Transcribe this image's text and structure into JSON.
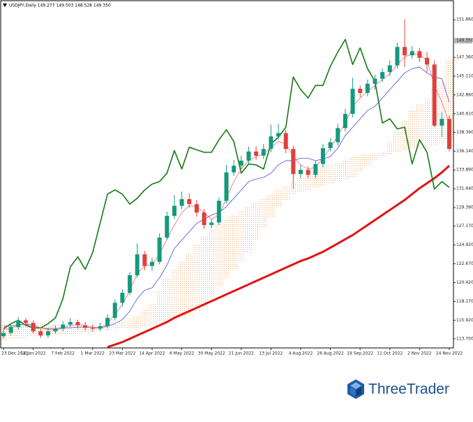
{
  "chart_data": {
    "type": "candlestick",
    "title": "USDJPY,Daily  149.277 149.503 148.528 149.350",
    "categories": [
      "23 Dec 2021",
      null,
      null,
      null,
      "14 Jan 2022",
      null,
      null,
      null,
      "7 Feb 2022",
      null,
      null,
      null,
      "1 Mar 2022",
      null,
      null,
      null,
      "23 Mar 2022",
      null,
      null,
      null,
      "14 Apr 2022",
      null,
      null,
      null,
      "6 May 2022",
      null,
      null,
      null,
      "30 May 2022",
      null,
      null,
      null,
      "21 Jun 2022",
      null,
      null,
      null,
      "13 Jul 2022",
      null,
      null,
      null,
      "4 Aug 2022",
      null,
      null,
      null,
      "26 Aug 2022",
      null,
      null,
      null,
      "19 Sep 2022",
      null,
      null,
      null,
      "11 Oct 2022",
      null,
      null,
      null,
      "2 Nov 2022",
      null,
      null,
      null,
      "24 Nov 2022"
    ],
    "open": [
      114.0,
      114.4,
      115.1,
      115.9,
      115.6,
      114.6,
      114.1,
      114.6,
      114.9,
      115.4,
      115.7,
      115.3,
      115.0,
      114.9,
      115.2,
      116.2,
      118.0,
      119.2,
      121.3,
      123.8,
      122.4,
      122.9,
      125.8,
      128.4,
      129.6,
      130.4,
      129.8,
      128.8,
      127.3,
      127.6,
      130.2,
      133.6,
      134.4,
      135.0,
      136.1,
      135.6,
      136.4,
      137.9,
      138.3,
      136.4,
      133.4,
      133.9,
      133.3,
      134.6,
      136.5,
      137.2,
      138.9,
      140.6,
      143.6,
      143.1,
      144.2,
      144.8,
      145.6,
      146.4,
      148.6,
      147.6,
      148.1,
      147.3,
      146.5,
      139.2,
      140.0
    ],
    "high": [
      114.8,
      115.4,
      116.3,
      116.2,
      115.9,
      114.9,
      115.0,
      115.3,
      115.8,
      116.2,
      116.0,
      115.7,
      115.4,
      115.6,
      116.6,
      118.4,
      119.6,
      121.7,
      125.1,
      124.2,
      123.4,
      126.3,
      128.9,
      130.9,
      131.3,
      131.1,
      130.3,
      129.2,
      128.0,
      130.6,
      134.5,
      135.1,
      135.6,
      136.7,
      136.7,
      137.0,
      139.3,
      139.4,
      138.7,
      136.8,
      134.5,
      134.3,
      135.0,
      137.0,
      137.7,
      139.4,
      141.2,
      144.9,
      144.0,
      144.7,
      145.3,
      146.0,
      147.0,
      149.1,
      151.9,
      148.7,
      148.5,
      148.0,
      147.0,
      140.8,
      140.4
    ],
    "low": [
      113.7,
      114.1,
      114.8,
      115.3,
      114.3,
      113.8,
      113.8,
      114.3,
      114.6,
      115.1,
      114.9,
      114.7,
      114.6,
      114.6,
      114.9,
      115.9,
      117.6,
      118.9,
      121.0,
      121.9,
      121.8,
      122.6,
      125.5,
      128.0,
      129.2,
      129.4,
      128.3,
      126.8,
      126.9,
      127.3,
      129.9,
      133.2,
      134.0,
      134.6,
      135.1,
      135.2,
      136.0,
      137.5,
      135.9,
      131.6,
      132.9,
      132.9,
      132.9,
      134.2,
      136.1,
      136.8,
      138.5,
      140.2,
      142.6,
      142.7,
      143.5,
      144.4,
      145.1,
      146.0,
      146.2,
      147.2,
      146.8,
      145.6,
      139.0,
      137.8,
      136.1
    ],
    "close": [
      114.4,
      115.1,
      115.9,
      115.6,
      114.6,
      114.1,
      114.6,
      114.9,
      115.4,
      115.7,
      115.3,
      115.0,
      114.9,
      115.2,
      116.2,
      118.0,
      119.2,
      121.3,
      123.8,
      122.4,
      122.9,
      125.8,
      128.4,
      129.6,
      130.4,
      129.8,
      128.8,
      127.3,
      127.6,
      130.2,
      133.6,
      134.4,
      135.0,
      136.1,
      135.6,
      136.4,
      137.9,
      138.3,
      136.4,
      133.4,
      133.9,
      133.3,
      134.6,
      136.5,
      137.2,
      138.9,
      140.6,
      143.6,
      143.1,
      144.2,
      144.8,
      145.6,
      146.4,
      148.6,
      147.6,
      148.1,
      147.3,
      146.5,
      139.2,
      140.0,
      136.4
    ],
    "up_color": "#139a7e",
    "down_color": "#e0403c",
    "cloud": {
      "color": "#f0a060",
      "span_a": [
        115.5,
        115.5,
        115.6,
        115.6,
        115.6,
        115.6,
        115.5,
        115.4,
        115.3,
        115.3,
        115.2,
        115.1,
        115.0,
        115.1,
        115.3,
        115.5,
        115.8,
        116.1,
        116.5,
        117.2,
        118.0,
        119.5,
        121.0,
        122.0,
        123.0,
        124.0,
        125.0,
        126.0,
        126.7,
        127.4,
        128.0,
        128.5,
        129.0,
        129.5,
        130.0,
        130.5,
        131.0,
        131.5,
        132.0,
        132.5,
        133.0,
        133.5,
        133.9,
        134.3,
        134.5,
        134.8,
        135.1,
        135.5,
        135.6,
        135.8,
        135.9,
        136.0,
        137.2,
        138.5,
        139.8,
        141.0,
        141.8,
        142.5,
        143.5,
        144.5,
        147.0
      ],
      "span_b": [
        113.5,
        113.6,
        113.7,
        113.8,
        113.9,
        114.0,
        114.1,
        114.1,
        114.2,
        114.2,
        114.3,
        114.4,
        114.5,
        114.6,
        114.7,
        114.8,
        114.9,
        115.0,
        115.0,
        115.1,
        115.2,
        115.3,
        115.5,
        115.8,
        116.1,
        116.5,
        117.0,
        117.5,
        118.7,
        119.9,
        121.0,
        122.0,
        123.0,
        124.0,
        125.5,
        127.0,
        128.2,
        129.5,
        130.3,
        131.0,
        131.2,
        131.5,
        131.7,
        132.0,
        132.2,
        132.5,
        132.7,
        133.0,
        133.7,
        134.5,
        135.0,
        135.5,
        135.7,
        136.0,
        136.2,
        136.5,
        136.5,
        136.5,
        136.8,
        137.0,
        137.5
      ]
    },
    "overlays": [
      {
        "color": "#e01414",
        "width": 3,
        "values": [
          null,
          null,
          null,
          null,
          null,
          null,
          null,
          null,
          null,
          null,
          null,
          null,
          null,
          null,
          112.7,
          113.0,
          113.3,
          113.7,
          114.1,
          114.5,
          114.9,
          115.3,
          115.7,
          116.2,
          116.6,
          117.0,
          117.4,
          117.8,
          118.2,
          118.6,
          119.0,
          119.4,
          119.8,
          120.2,
          120.6,
          121.0,
          121.4,
          121.8,
          122.2,
          122.6,
          123.0,
          123.3,
          123.7,
          124.1,
          124.6,
          125.1,
          125.6,
          126.1,
          126.7,
          127.3,
          127.9,
          128.5,
          129.1,
          129.7,
          130.3,
          131.0,
          131.7,
          132.3,
          132.9,
          133.6,
          134.4
        ]
      },
      {
        "color": "#137a13",
        "width": 1.6,
        "values": [
          114.9,
          115.5,
          115.9,
          115.3,
          115.0,
          115.0,
          115.5,
          116.2,
          118.5,
          122.3,
          123.5,
          122.0,
          124.0,
          127.5,
          131.0,
          131.5,
          131.0,
          129.8,
          130.5,
          131.5,
          132.2,
          132.5,
          133.5,
          136.2,
          134.0,
          136.6,
          136.3,
          136.0,
          136.0,
          137.5,
          138.7,
          137.3,
          133.5,
          134.6,
          134.5,
          134.0,
          137.0,
          137.8,
          139.0,
          145.0,
          143.5,
          142.5,
          144.0,
          144.0,
          146.3,
          148.0,
          149.5,
          146.5,
          148.5,
          146.0,
          144.5,
          139.5,
          140.0,
          138.8,
          139.0,
          134.6,
          137.5,
          136.0,
          131.6,
          132.5,
          131.8
        ]
      },
      {
        "color": "#4b4be0",
        "width": 0.8,
        "values": [
          115.2,
          115.2,
          115.4,
          115.4,
          115.3,
          115.0,
          114.9,
          114.9,
          115.0,
          115.0,
          115.1,
          115.1,
          115.0,
          115.0,
          115.2,
          115.5,
          116.0,
          117.0,
          118.5,
          119.5,
          119.8,
          121.0,
          122.5,
          124.5,
          125.5,
          126.5,
          127.5,
          128.0,
          128.5,
          128.8,
          129.5,
          130.5,
          131.5,
          132.5,
          132.8,
          133.0,
          133.5,
          134.5,
          135.0,
          135.0,
          135.3,
          135.3,
          135.0,
          135.2,
          135.5,
          136.5,
          138.0,
          139.0,
          140.0,
          141.0,
          141.5,
          142.5,
          143.5,
          144.5,
          145.5,
          146.0,
          146.2,
          145.5,
          145.0,
          144.8,
          142.0
        ]
      },
      {
        "color": "#f06a6a",
        "width": 0.8,
        "values": [
          114.8,
          115.0,
          115.3,
          115.5,
          115.3,
          115.0,
          114.8,
          114.7,
          115.0,
          115.3,
          115.4,
          115.3,
          115.1,
          115.0,
          115.5,
          116.6,
          117.8,
          119.5,
          121.5,
          122.4,
          122.6,
          123.8,
          125.6,
          127.3,
          128.8,
          129.6,
          129.5,
          128.8,
          128.0,
          128.5,
          130.5,
          132.5,
          134.0,
          135.0,
          135.5,
          135.8,
          136.6,
          137.3,
          137.0,
          135.5,
          134.5,
          134.0,
          134.2,
          135.3,
          136.5,
          138.0,
          139.5,
          141.5,
          142.5,
          143.3,
          144.0,
          144.7,
          145.4,
          146.5,
          147.4,
          147.8,
          147.7,
          147.0,
          144.0,
          142.0,
          139.5
        ]
      }
    ],
    "ylim": [
      112.6,
      153.8
    ],
    "yticks": [
      {
        "value": 151.86,
        "label": "151.860"
      },
      {
        "value": 147.36,
        "label": "147.360"
      },
      {
        "value": 145.11,
        "label": "145.110"
      },
      {
        "value": 142.86,
        "label": "142.860"
      },
      {
        "value": 140.61,
        "label": "140.610"
      },
      {
        "value": 138.39,
        "label": "138.390"
      },
      {
        "value": 136.14,
        "label": "136.140"
      },
      {
        "value": 133.89,
        "label": "133.890"
      },
      {
        "value": 131.64,
        "label": "131.640"
      },
      {
        "value": 129.39,
        "label": "129.390"
      },
      {
        "value": 127.17,
        "label": "127.170"
      },
      {
        "value": 124.92,
        "label": "124.920"
      },
      {
        "value": 122.67,
        "label": "122.670"
      },
      {
        "value": 120.42,
        "label": "120.420"
      },
      {
        "value": 118.17,
        "label": "118.170"
      },
      {
        "value": 115.92,
        "label": "115.920"
      },
      {
        "value": 113.7,
        "label": "113.700"
      }
    ],
    "current_price": {
      "value": 149.35,
      "label": "149.350"
    },
    "grid": false
  },
  "brand": "ThreeTrader"
}
